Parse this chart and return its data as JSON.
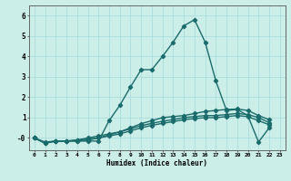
{
  "title": "",
  "xlabel": "Humidex (Indice chaleur)",
  "background_color": "#cceee8",
  "grid_color": "#aadddd",
  "line_color": "#1a6b6b",
  "xlim": [
    -0.5,
    23.5
  ],
  "ylim": [
    -0.6,
    6.5
  ],
  "ytick_vals": [
    0,
    1,
    2,
    3,
    4,
    5,
    6
  ],
  "ytick_labels": [
    "-0",
    "1",
    "2",
    "3",
    "4",
    "5",
    "6"
  ],
  "xticks": [
    0,
    1,
    2,
    3,
    4,
    5,
    6,
    7,
    8,
    9,
    10,
    11,
    12,
    13,
    14,
    15,
    16,
    17,
    18,
    19,
    20,
    21,
    22,
    23
  ],
  "series": [
    [
      0.0,
      -0.2,
      -0.15,
      -0.15,
      -0.15,
      -0.15,
      -0.15,
      0.85,
      1.6,
      2.5,
      3.35,
      3.35,
      4.0,
      4.7,
      5.5,
      5.8,
      4.7,
      2.8,
      1.35,
      1.4,
      1.1,
      -0.2,
      0.5
    ],
    [
      0.0,
      -0.25,
      -0.15,
      -0.15,
      -0.15,
      -0.1,
      0.0,
      0.15,
      0.3,
      0.5,
      0.7,
      0.85,
      1.0,
      1.05,
      1.1,
      1.2,
      1.3,
      1.35,
      1.4,
      1.42,
      1.35,
      1.1,
      0.9
    ],
    [
      0.0,
      -0.25,
      -0.15,
      -0.15,
      -0.1,
      0.0,
      0.1,
      0.2,
      0.3,
      0.45,
      0.6,
      0.72,
      0.82,
      0.9,
      1.0,
      1.05,
      1.1,
      1.1,
      1.15,
      1.2,
      1.15,
      1.0,
      0.75
    ],
    [
      0.0,
      -0.25,
      -0.15,
      -0.15,
      -0.1,
      -0.05,
      0.0,
      0.1,
      0.2,
      0.35,
      0.5,
      0.62,
      0.72,
      0.8,
      0.9,
      0.95,
      1.0,
      1.0,
      1.05,
      1.1,
      1.05,
      0.85,
      0.65
    ]
  ],
  "marker": "D",
  "marker_size": 2.2,
  "line_width": 1.0
}
